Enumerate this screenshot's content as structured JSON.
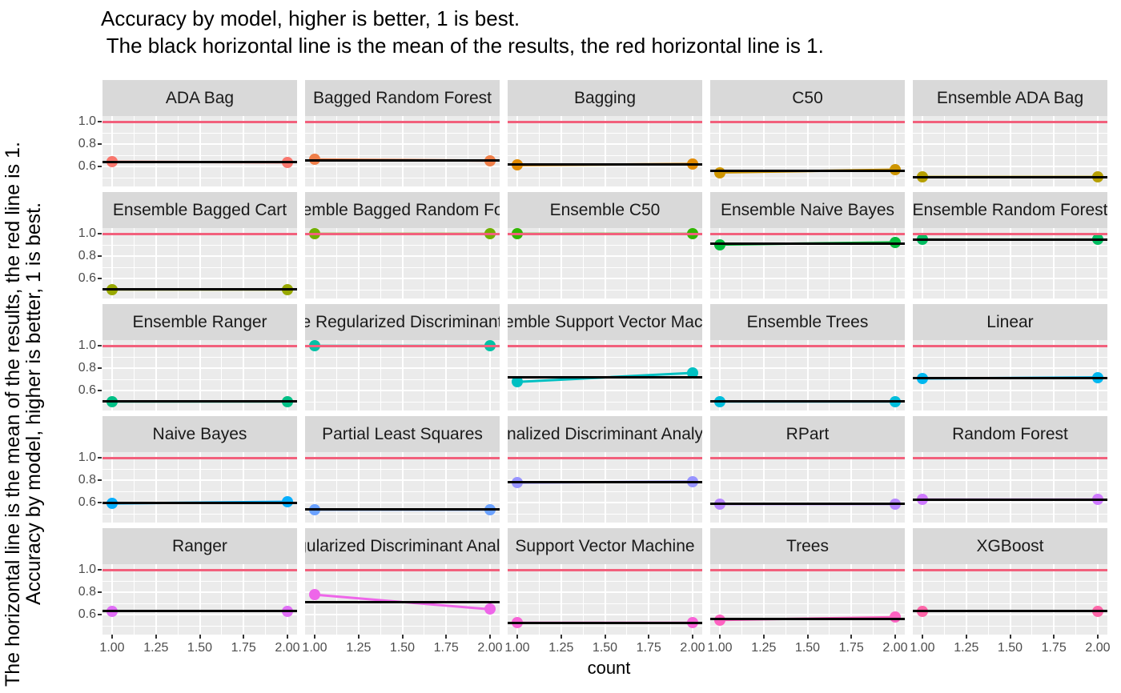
{
  "title": {
    "line1": "Accuracy by model, higher is better, 1 is best.",
    "line2": " The black horizontal line is the mean of the results, the red horizontal line is 1."
  },
  "y_axis": {
    "title_line1": "Accuracy by model, higher is better, 1 is best.",
    "title_line2": "The horizontal line is the mean of the results, the red line is 1.",
    "tick_labels": [
      "1.0",
      "0.8",
      "0.6"
    ],
    "tick_values": [
      1.0,
      0.8,
      0.6
    ]
  },
  "x_axis": {
    "title": "count",
    "tick_labels": [
      "1.00",
      "1.25",
      "1.50",
      "1.75",
      "2.00"
    ],
    "tick_values": [
      1.0,
      1.25,
      1.5,
      1.75,
      2.0
    ]
  },
  "colors": {
    "background": "#FFFFFF",
    "panel_bg": "#EBEBEB",
    "strip_bg": "#D9D9D9",
    "grid": "#FFFFFF",
    "mean_line": "#000000",
    "reference_line": "#F2607C",
    "tick_text": "#4D4D4D",
    "tick_mark": "#333333",
    "text": "#000000"
  },
  "chart_data": {
    "type": "line",
    "faceted_by": "model",
    "x": [
      1,
      2
    ],
    "xlabel": "count",
    "ylabel_line1": "Accuracy by model, higher is better, 1 is best.",
    "ylabel_line2": "The horizontal line is the mean of the results, the red line is 1.",
    "xlim": [
      0.945,
      2.055
    ],
    "ylim": [
      0.425,
      1.052
    ],
    "x_major_gridlines": [
      1.0,
      1.25,
      1.5,
      1.75,
      2.0
    ],
    "x_minor_gridlines": [
      1.125,
      1.375,
      1.625,
      1.875
    ],
    "y_major_gridlines": [
      0.6,
      0.8,
      1.0
    ],
    "y_minor_gridlines": [
      0.5,
      0.7,
      0.9
    ],
    "grid": true,
    "legend": "none",
    "reference_line_y": 1.0,
    "facets": [
      {
        "label": "ADA Bag",
        "color": "#F8766D",
        "values": [
          0.645,
          0.64
        ],
        "mean": 0.6425
      },
      {
        "label": "Bagged Random Forest",
        "color": "#EF7F49",
        "values": [
          0.665,
          0.655
        ],
        "mean": 0.66
      },
      {
        "label": "Bagging",
        "color": "#E18A00",
        "values": [
          0.615,
          0.625
        ],
        "mean": 0.62
      },
      {
        "label": "C50",
        "color": "#CE9500",
        "values": [
          0.55,
          0.575
        ],
        "mean": 0.5625
      },
      {
        "label": "Ensemble ADA Bag",
        "color": "#B69F00",
        "values": [
          0.51,
          0.51
        ],
        "mean": 0.51
      },
      {
        "label": "Ensemble Bagged Cart",
        "color": "#98A800",
        "values": [
          0.505,
          0.505
        ],
        "mean": 0.505
      },
      {
        "label": "Ensemble Bagged Random Forest",
        "color": "#71AF00",
        "values": [
          1.0,
          1.0
        ],
        "mean": 1.0
      },
      {
        "label": "Ensemble C50",
        "color": "#31B600",
        "values": [
          1.0,
          1.0
        ],
        "mean": 1.0
      },
      {
        "label": "Ensemble Naive Bayes",
        "color": "#00BA3A",
        "values": [
          0.905,
          0.925
        ],
        "mean": 0.915
      },
      {
        "label": "Ensemble Random Forest",
        "color": "#00BD61",
        "values": [
          0.95,
          0.95
        ],
        "mean": 0.95
      },
      {
        "label": "Ensemble Ranger",
        "color": "#00BF85",
        "values": [
          0.505,
          0.505
        ],
        "mean": 0.505
      },
      {
        "label": "Ensemble Regularized Discriminant Analysis",
        "color": "#00C1A5",
        "values": [
          1.0,
          1.0
        ],
        "mean": 1.0
      },
      {
        "label": "Ensemble Support Vector Machine",
        "color": "#00C0C2",
        "values": [
          0.68,
          0.76
        ],
        "mean": 0.72
      },
      {
        "label": "Ensemble Trees",
        "color": "#00BDDB",
        "values": [
          0.505,
          0.505
        ],
        "mean": 0.505
      },
      {
        "label": "Linear",
        "color": "#00B7EF",
        "values": [
          0.71,
          0.72
        ],
        "mean": 0.715
      },
      {
        "label": "Naive Bayes",
        "color": "#06AEFD",
        "values": [
          0.595,
          0.61
        ],
        "mean": 0.6025
      },
      {
        "label": "Partial Least Squares",
        "color": "#6AA1FF",
        "values": [
          0.54,
          0.54
        ],
        "mean": 0.54
      },
      {
        "label": "Penalized Discriminant Analysis",
        "color": "#9793FF",
        "values": [
          0.78,
          0.79
        ],
        "mean": 0.785
      },
      {
        "label": "RPart",
        "color": "#B685FF",
        "values": [
          0.59,
          0.59
        ],
        "mean": 0.59
      },
      {
        "label": "Random Forest",
        "color": "#CE79FF",
        "values": [
          0.63,
          0.63
        ],
        "mean": 0.63
      },
      {
        "label": "Ranger",
        "color": "#E06EF6",
        "values": [
          0.635,
          0.635
        ],
        "mean": 0.635
      },
      {
        "label": "Regularized Discriminant Analysis",
        "color": "#EE66E9",
        "values": [
          0.78,
          0.65
        ],
        "mean": 0.715
      },
      {
        "label": "Support Vector Machine",
        "color": "#F863D7",
        "values": [
          0.53,
          0.53
        ],
        "mean": 0.53
      },
      {
        "label": "Trees",
        "color": "#FE62C1",
        "values": [
          0.555,
          0.58
        ],
        "mean": 0.5675
      },
      {
        "label": "XGBoost",
        "color": "#FF66A8",
        "values": [
          0.635,
          0.635
        ],
        "mean": 0.635
      }
    ]
  }
}
